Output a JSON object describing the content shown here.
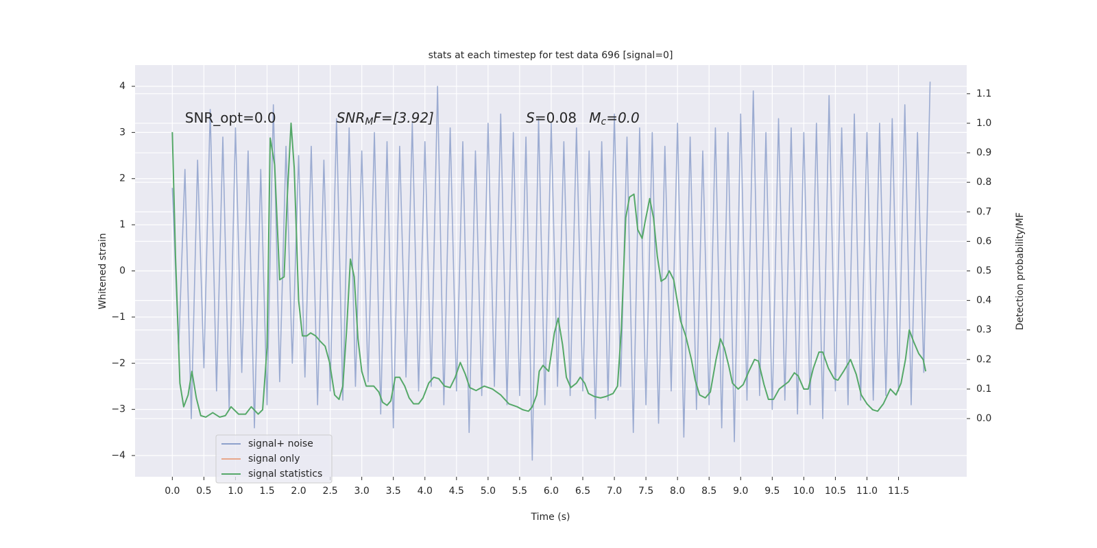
{
  "chart_data": {
    "type": "line",
    "title": "stats at each timestep for test data 696 [signal=0]",
    "x_label": "Time (s)",
    "y_label": "Whitened strain",
    "y2_label": "Detection probability/MF",
    "annotations": [
      {
        "text": "SNR_opt=0.0",
        "x": 0.2,
        "y": 3.3
      },
      {
        "main": "SNR",
        "sub": "M",
        "rest": "F=[3.92]",
        "x": 2.6,
        "y": 3.3
      },
      {
        "main": "S",
        "rest": "=0.08",
        "x": 5.6,
        "y": 3.3
      },
      {
        "main": "M",
        "sub": "c",
        "rest": "=0.0",
        "x": 6.6,
        "y": 3.3
      }
    ],
    "xlim": [
      -0.59,
      12.58
    ],
    "ylim": [
      -4.46,
      4.46
    ],
    "y2lim": [
      -0.197,
      1.197
    ],
    "grid": true,
    "legend": "lower left",
    "xticks": [
      {
        "value": 0,
        "label": "0.0"
      },
      {
        "value": 0.5,
        "label": "0.5"
      },
      {
        "value": 1,
        "label": "1.0"
      },
      {
        "value": 1.5,
        "label": "1.5"
      },
      {
        "value": 2,
        "label": "2.0"
      },
      {
        "value": 2.5,
        "label": "2.5"
      },
      {
        "value": 3,
        "label": "3.0"
      },
      {
        "value": 3.5,
        "label": "3.5"
      },
      {
        "value": 4,
        "label": "4.0"
      },
      {
        "value": 4.5,
        "label": "4.5"
      },
      {
        "value": 5,
        "label": "5.0"
      },
      {
        "value": 5.5,
        "label": "5.5"
      },
      {
        "value": 6,
        "label": "6.0"
      },
      {
        "value": 6.5,
        "label": "6.5"
      },
      {
        "value": 7,
        "label": "7.0"
      },
      {
        "value": 7.5,
        "label": "7.5"
      },
      {
        "value": 8,
        "label": "8.0"
      },
      {
        "value": 8.5,
        "label": "8.5"
      },
      {
        "value": 9,
        "label": "9.0"
      },
      {
        "value": 9.5,
        "label": "9.5"
      },
      {
        "value": 10,
        "label": "10.0"
      },
      {
        "value": 10.5,
        "label": "10.5"
      },
      {
        "value": 11,
        "label": "11.0"
      },
      {
        "value": 11.5,
        "label": "11.5"
      }
    ],
    "yticks": [
      {
        "value": -4,
        "label": "−4"
      },
      {
        "value": -3,
        "label": "−3"
      },
      {
        "value": -2,
        "label": "−2"
      },
      {
        "value": -1,
        "label": "−1"
      },
      0,
      1,
      2,
      3,
      4
    ],
    "y2ticks": [
      {
        "value": 0,
        "label": "0.0"
      },
      {
        "value": 0.1,
        "label": "0.1"
      },
      {
        "value": 0.2,
        "label": "0.2"
      },
      {
        "value": 0.3,
        "label": "0.3"
      },
      {
        "value": 0.4,
        "label": "0.4"
      },
      {
        "value": 0.5,
        "label": "0.5"
      },
      {
        "value": 0.6,
        "label": "0.6"
      },
      {
        "value": 0.7,
        "label": "0.7"
      },
      {
        "value": 0.8,
        "label": "0.8"
      },
      {
        "value": 0.9,
        "label": "0.9"
      },
      {
        "value": 1,
        "label": "1.0"
      },
      {
        "value": 1.1,
        "label": "1.1"
      }
    ],
    "series": [
      {
        "name": "signal+ noise",
        "color": "#8da0cb",
        "x": [
          0,
          0.1,
          0.2,
          0.3,
          0.4,
          0.5,
          0.6,
          0.7,
          0.8,
          0.9,
          1,
          1.1,
          1.2,
          1.3,
          1.4,
          1.5,
          1.6,
          1.7,
          1.8,
          1.9,
          2,
          2.1,
          2.2,
          2.3,
          2.4,
          2.5,
          2.6,
          2.7,
          2.8,
          2.9,
          3,
          3.1,
          3.2,
          3.3,
          3.4,
          3.5,
          3.6,
          3.7,
          3.8,
          3.9,
          4,
          4.1,
          4.2,
          4.3,
          4.4,
          4.5,
          4.6,
          4.7,
          4.8,
          4.9,
          5,
          5.1,
          5.2,
          5.3,
          5.4,
          5.5,
          5.6,
          5.7,
          5.8,
          5.9,
          6,
          6.1,
          6.2,
          6.3,
          6.4,
          6.5,
          6.6,
          6.7,
          6.8,
          6.9,
          7,
          7.1,
          7.2,
          7.3,
          7.4,
          7.5,
          7.6,
          7.7,
          7.8,
          7.9,
          8,
          8.1,
          8.2,
          8.3,
          8.4,
          8.5,
          8.6,
          8.7,
          8.8,
          8.9,
          9,
          9.1,
          9.2,
          9.3,
          9.4,
          9.5,
          9.6,
          9.7,
          9.8,
          9.9,
          10,
          10.1,
          10.2,
          10.3,
          10.4,
          10.5,
          10.6,
          10.7,
          10.8,
          10.9,
          11,
          11.1,
          11.2,
          11.3,
          11.4,
          11.5,
          11.6,
          11.7,
          11.8,
          11.9,
          12
        ],
        "values": [
          1.8,
          -1.7,
          2.2,
          -3.2,
          2.4,
          -2.1,
          3.5,
          -2.6,
          2.9,
          -3.0,
          3.1,
          -2.2,
          2.6,
          -3.4,
          2.2,
          -2.9,
          3.6,
          -2.4,
          2.7,
          -2.0,
          2.5,
          -2.3,
          2.7,
          -2.9,
          2.4,
          -2.6,
          3.3,
          -2.8,
          3.1,
          -2.5,
          2.6,
          -2.4,
          3.0,
          -3.1,
          2.8,
          -3.4,
          2.7,
          -2.3,
          3.2,
          -2.6,
          2.8,
          -2.5,
          4.0,
          -2.9,
          3.1,
          -2.6,
          2.8,
          -3.5,
          2.6,
          -2.7,
          3.2,
          -2.5,
          3.4,
          -2.9,
          3.0,
          -2.7,
          2.9,
          -4.1,
          3.3,
          -2.9,
          3.2,
          -2.5,
          2.8,
          -2.7,
          3.1,
          -2.6,
          2.6,
          -3.2,
          2.8,
          -2.8,
          3.4,
          -2.5,
          2.9,
          -3.5,
          3.1,
          -2.9,
          3.0,
          -3.3,
          2.7,
          -2.6,
          3.2,
          -3.6,
          2.9,
          -3.0,
          2.6,
          -2.9,
          3.1,
          -3.4,
          3.0,
          -3.7,
          3.4,
          -2.8,
          3.9,
          -2.7,
          3.0,
          -3.0,
          3.3,
          -2.8,
          3.1,
          -3.1,
          3.0,
          -2.9,
          3.2,
          -3.2,
          3.8,
          -2.6,
          3.1,
          -2.9,
          3.4,
          -2.8,
          3.0,
          -2.8,
          3.2,
          -2.7,
          3.3,
          -2.6,
          3.6,
          -2.9,
          3.0,
          -2.2,
          4.1
        ]
      },
      {
        "name": "signal only",
        "color": "#e8a68a"
      },
      {
        "name": "signal statistics",
        "color": "#55a868",
        "axis": "y2",
        "x": [
          0,
          0.05,
          0.12,
          0.18,
          0.25,
          0.31,
          0.38,
          0.45,
          0.53,
          0.64,
          0.75,
          0.84,
          0.93,
          1.05,
          1.16,
          1.25,
          1.36,
          1.43,
          1.5,
          1.55,
          1.62,
          1.7,
          1.77,
          1.82,
          1.88,
          1.93,
          2.0,
          2.06,
          2.13,
          2.19,
          2.27,
          2.35,
          2.42,
          2.49,
          2.57,
          2.64,
          2.7,
          2.76,
          2.82,
          2.88,
          2.94,
          3.0,
          3.07,
          3.19,
          3.27,
          3.33,
          3.4,
          3.46,
          3.53,
          3.6,
          3.68,
          3.75,
          3.82,
          3.9,
          3.97,
          4.06,
          4.14,
          4.22,
          4.31,
          4.4,
          4.48,
          4.56,
          4.64,
          4.71,
          4.81,
          4.94,
          5.07,
          5.2,
          5.33,
          5.46,
          5.55,
          5.64,
          5.7,
          5.77,
          5.81,
          5.87,
          5.96,
          6.05,
          6.11,
          6.18,
          6.24,
          6.31,
          6.4,
          6.46,
          6.53,
          6.59,
          6.68,
          6.78,
          6.87,
          6.98,
          7.05,
          7.11,
          7.18,
          7.24,
          7.31,
          7.37,
          7.44,
          7.49,
          7.56,
          7.62,
          7.68,
          7.74,
          7.81,
          7.87,
          7.94,
          8.05,
          8.13,
          8.22,
          8.28,
          8.35,
          8.44,
          8.52,
          8.61,
          8.68,
          8.74,
          8.81,
          8.87,
          8.96,
          9.04,
          9.13,
          9.22,
          9.28,
          9.37,
          9.44,
          9.52,
          9.61,
          9.7,
          9.76,
          9.85,
          9.91,
          10.0,
          10.07,
          10.15,
          10.24,
          10.3,
          10.39,
          10.48,
          10.54,
          10.63,
          10.74,
          10.83,
          10.91,
          11.0,
          11.09,
          11.17,
          11.26,
          11.37,
          11.46,
          11.54,
          11.61,
          11.67,
          11.74,
          11.82,
          11.89,
          11.93
        ],
        "values": [
          0.97,
          0.55,
          0.12,
          0.04,
          0.08,
          0.16,
          0.07,
          0.01,
          0.005,
          0.02,
          0.005,
          0.01,
          0.04,
          0.015,
          0.015,
          0.04,
          0.015,
          0.03,
          0.24,
          0.95,
          0.86,
          0.47,
          0.48,
          0.75,
          1.0,
          0.85,
          0.4,
          0.28,
          0.28,
          0.29,
          0.28,
          0.26,
          0.245,
          0.19,
          0.08,
          0.065,
          0.11,
          0.3,
          0.54,
          0.48,
          0.27,
          0.16,
          0.11,
          0.11,
          0.09,
          0.055,
          0.045,
          0.06,
          0.14,
          0.14,
          0.11,
          0.07,
          0.05,
          0.05,
          0.07,
          0.12,
          0.14,
          0.135,
          0.11,
          0.105,
          0.14,
          0.19,
          0.15,
          0.105,
          0.095,
          0.11,
          0.1,
          0.08,
          0.05,
          0.04,
          0.03,
          0.025,
          0.04,
          0.08,
          0.16,
          0.18,
          0.16,
          0.29,
          0.34,
          0.25,
          0.14,
          0.105,
          0.12,
          0.14,
          0.12,
          0.085,
          0.075,
          0.07,
          0.075,
          0.085,
          0.11,
          0.3,
          0.68,
          0.75,
          0.76,
          0.64,
          0.61,
          0.67,
          0.745,
          0.68,
          0.55,
          0.465,
          0.475,
          0.5,
          0.47,
          0.33,
          0.28,
          0.2,
          0.13,
          0.08,
          0.07,
          0.09,
          0.2,
          0.27,
          0.24,
          0.18,
          0.12,
          0.1,
          0.115,
          0.16,
          0.2,
          0.195,
          0.115,
          0.065,
          0.065,
          0.1,
          0.115,
          0.125,
          0.155,
          0.145,
          0.1,
          0.1,
          0.17,
          0.225,
          0.225,
          0.17,
          0.135,
          0.13,
          0.16,
          0.2,
          0.15,
          0.08,
          0.05,
          0.03,
          0.025,
          0.05,
          0.1,
          0.08,
          0.12,
          0.2,
          0.3,
          0.26,
          0.22,
          0.2,
          0.16
        ]
      }
    ]
  }
}
